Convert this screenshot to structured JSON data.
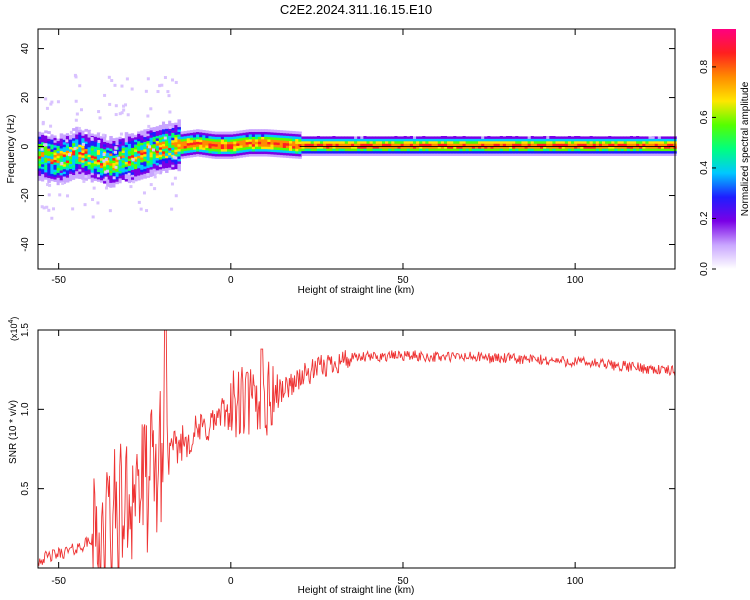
{
  "title": "C2E2.2024.311.16.15.E10",
  "chart_data": [
    {
      "type": "heatmap",
      "xlabel": "Height of straight line (km)",
      "ylabel": "Frequency (Hz)",
      "xlim": [
        -56,
        129
      ],
      "ylim": [
        -50,
        48
      ],
      "xticks": [
        -50,
        0,
        50,
        100
      ],
      "xtick_labels": [
        "-50",
        "0",
        "50",
        "100"
      ],
      "yticks": [
        -40,
        -20,
        0,
        20,
        40
      ],
      "ytick_labels": [
        "-40",
        "-20",
        "0",
        "20",
        "40"
      ],
      "colorbar": {
        "label": "Normalized spectral amplitude",
        "range": [
          0,
          0.95
        ],
        "ticks": [
          0,
          0.2,
          0.4,
          0.6,
          0.8
        ],
        "tick_labels": [
          "0.0",
          "0.2",
          "0.4",
          "0.6",
          "0.8"
        ],
        "colors": [
          "#ffffff",
          "#c9a6ff",
          "#7a00e6",
          "#1e1eff",
          "#00c8ff",
          "#00ff7f",
          "#55ff00",
          "#ffe600",
          "#ff8c00",
          "#ff1f1f",
          "#ff0080"
        ]
      },
      "ridge": {
        "description_free": true,
        "points": [
          {
            "x": -56,
            "f": -4
          },
          {
            "x": -50,
            "f": -6
          },
          {
            "x": -45,
            "f": -3
          },
          {
            "x": -40,
            "f": -5
          },
          {
            "x": -35,
            "f": -7
          },
          {
            "x": -30,
            "f": -5
          },
          {
            "x": -25,
            "f": -3
          },
          {
            "x": -20,
            "f": -1
          },
          {
            "x": -15,
            "f": 0
          },
          {
            "x": -10,
            "f": 1
          },
          {
            "x": -5,
            "f": 0
          },
          {
            "x": 0,
            "f": 0
          },
          {
            "x": 5,
            "f": 1
          },
          {
            "x": 10,
            "f": 1
          },
          {
            "x": 20,
            "f": 0
          },
          {
            "x": 129,
            "f": 0
          }
        ]
      },
      "grid": false
    },
    {
      "type": "line",
      "xlabel": "Height of straight line (km)",
      "ylabel": "SNR (10 * v/v)",
      "multiplier": "(x10",
      "multiplier_exp": "4",
      "xlim": [
        -56,
        129
      ],
      "ylim": [
        0,
        1.5
      ],
      "xticks": [
        -50,
        0,
        50,
        100
      ],
      "xtick_labels": [
        "-50",
        "0",
        "50",
        "100"
      ],
      "yticks": [
        0.5,
        1.0,
        1.5
      ],
      "ytick_labels": [
        "0.5",
        "1.0",
        "1.5"
      ],
      "series": [
        {
          "color": "#ee3333",
          "x": [
            -56,
            -50,
            -45,
            -40,
            -35,
            -30,
            -28,
            -25,
            -22,
            -20,
            -18,
            -15,
            -10,
            -5,
            0,
            5,
            8,
            10,
            12,
            15,
            20,
            25,
            30,
            35,
            40,
            50,
            60,
            70,
            80,
            90,
            100,
            110,
            120,
            129
          ],
          "values": [
            0.05,
            0.09,
            0.12,
            0.18,
            0.28,
            0.4,
            0.55,
            0.5,
            0.6,
            0.72,
            0.7,
            0.78,
            0.85,
            0.92,
            1.0,
            1.05,
            1.0,
            1.02,
            1.1,
            1.12,
            1.2,
            1.25,
            1.3,
            1.32,
            1.33,
            1.34,
            1.33,
            1.33,
            1.32,
            1.31,
            1.3,
            1.28,
            1.26,
            1.24
          ]
        }
      ],
      "grid": false
    }
  ]
}
